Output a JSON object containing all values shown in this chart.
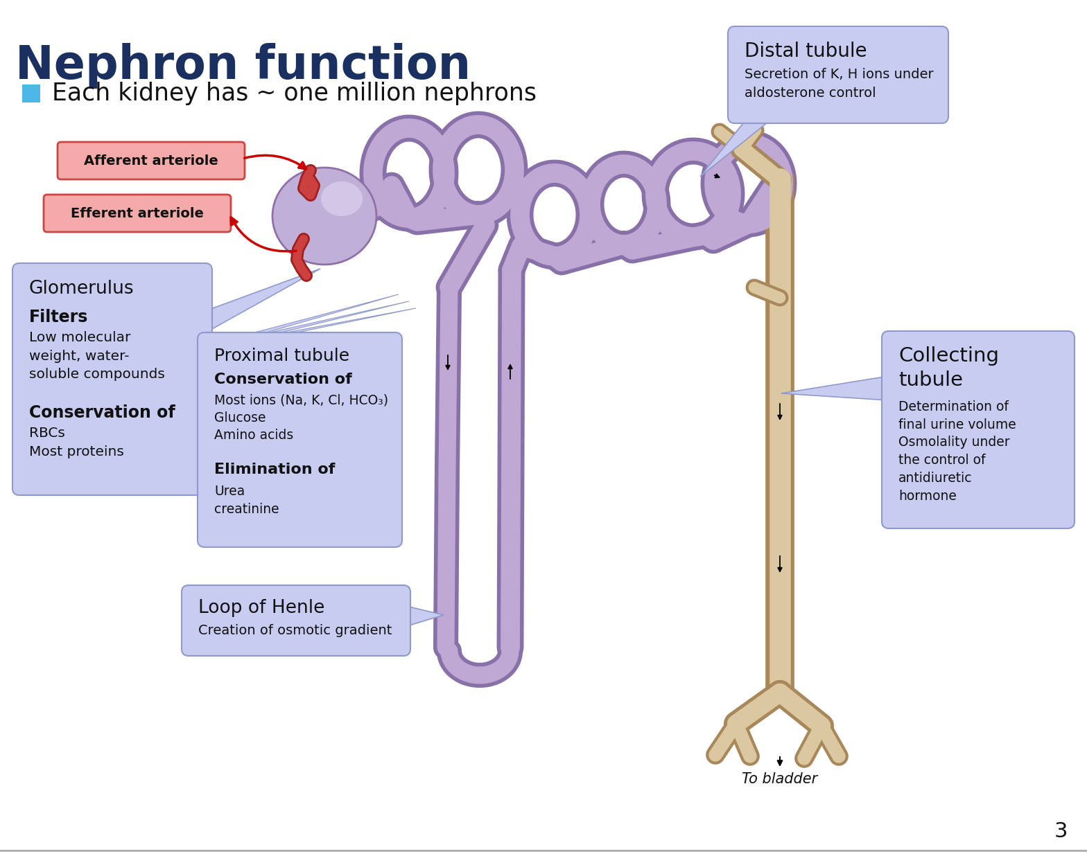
{
  "title": "Nephron function",
  "title_color": "#1a3060",
  "bullet_text": "Each kidney has ~ one million nephrons",
  "bullet_sq_color": "#4db8e8",
  "background_color": "#ffffff",
  "box_fill": "#c8ccf0",
  "box_edge": "#9099cc",
  "aff_fill": "#f5aaaa",
  "aff_edge": "#cc4444",
  "text_dark": "#111111",
  "red_arrow": "#cc0000",
  "tubule_inner": "#c0a8d4",
  "tubule_outer": "#8870a8",
  "collect_inner": "#dcc8a0",
  "collect_outer": "#a8885a",
  "glom_inner": "#c8b8dc",
  "glom_outer": "#9070a0",
  "page_num": "3",
  "glom_title": "Glomerulus",
  "glom_bold1": "Filters",
  "glom_text1": "Low molecular\nweight, water-\nsoluble compounds",
  "glom_bold2": "Conservation of",
  "glom_text2": "RBCs\nMost proteins",
  "prox_title": "Proximal tubule",
  "prox_bold1": "Conservation of",
  "prox_text1": "Most ions (Na, K, Cl, HCO₃)\nGlucose\nAmino acids",
  "prox_bold2": "Elimination of",
  "prox_text2": "Urea\ncreatinine",
  "dist_title": "Distal tubule",
  "dist_text": "Secretion of K, H ions under\naldosterone control",
  "loop_title": "Loop of Henle",
  "loop_text": "Creation of osmotic gradient",
  "coll_title": "Collecting\ntubule",
  "coll_text": "Determination of\nfinal urine volume\nOsmolality under\nthe control of\nantidiuretic\nhormone",
  "bladder": "To bladder",
  "aff_label": "Afferent arteriole",
  "eff_label": "Efferent arteriole"
}
